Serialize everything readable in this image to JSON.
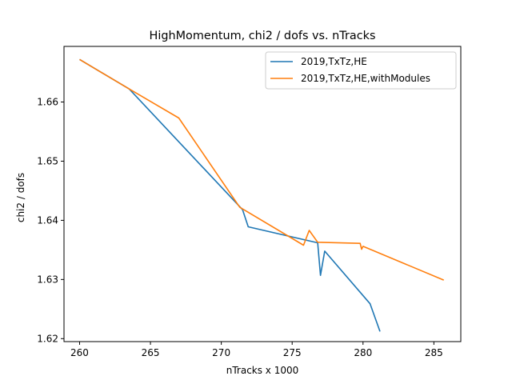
{
  "chart_data": {
    "type": "line",
    "title": "HighMomentum, chi2 / dofs vs. nTracks",
    "xlabel": "nTracks x 1000",
    "ylabel": "chi2 / dofs",
    "xlim": [
      258.9,
      286.9
    ],
    "ylim": [
      1.6195,
      1.6694
    ],
    "xticks": [
      260,
      265,
      270,
      275,
      280,
      285
    ],
    "yticks": [
      1.62,
      1.63,
      1.64,
      1.65,
      1.66
    ],
    "xtick_labels": [
      "260",
      "265",
      "270",
      "275",
      "280",
      "285"
    ],
    "ytick_labels": [
      "1.62",
      "1.63",
      "1.64",
      "1.65",
      "1.66"
    ],
    "grid": false,
    "legend_position": "top-right",
    "series": [
      {
        "name": "2019,TxTz,HE",
        "color": "#1f77b4",
        "x": [
          260.0,
          263.5,
          271.5,
          271.9,
          276.8,
          277.0,
          277.3,
          280.5,
          281.2
        ],
        "y": [
          1.6672,
          1.6622,
          1.6418,
          1.6389,
          1.6362,
          1.6307,
          1.6348,
          1.6259,
          1.6212
        ]
      },
      {
        "name": "2019,TxTz,HE,withModules",
        "color": "#ff7f0e",
        "x": [
          260.0,
          263.5,
          267.0,
          271.3,
          275.8,
          276.2,
          276.8,
          279.8,
          279.9,
          280.0,
          285.7
        ],
        "y": [
          1.6672,
          1.6622,
          1.6573,
          1.6422,
          1.6358,
          1.6383,
          1.6363,
          1.6361,
          1.6351,
          1.6356,
          1.6299
        ]
      }
    ]
  }
}
